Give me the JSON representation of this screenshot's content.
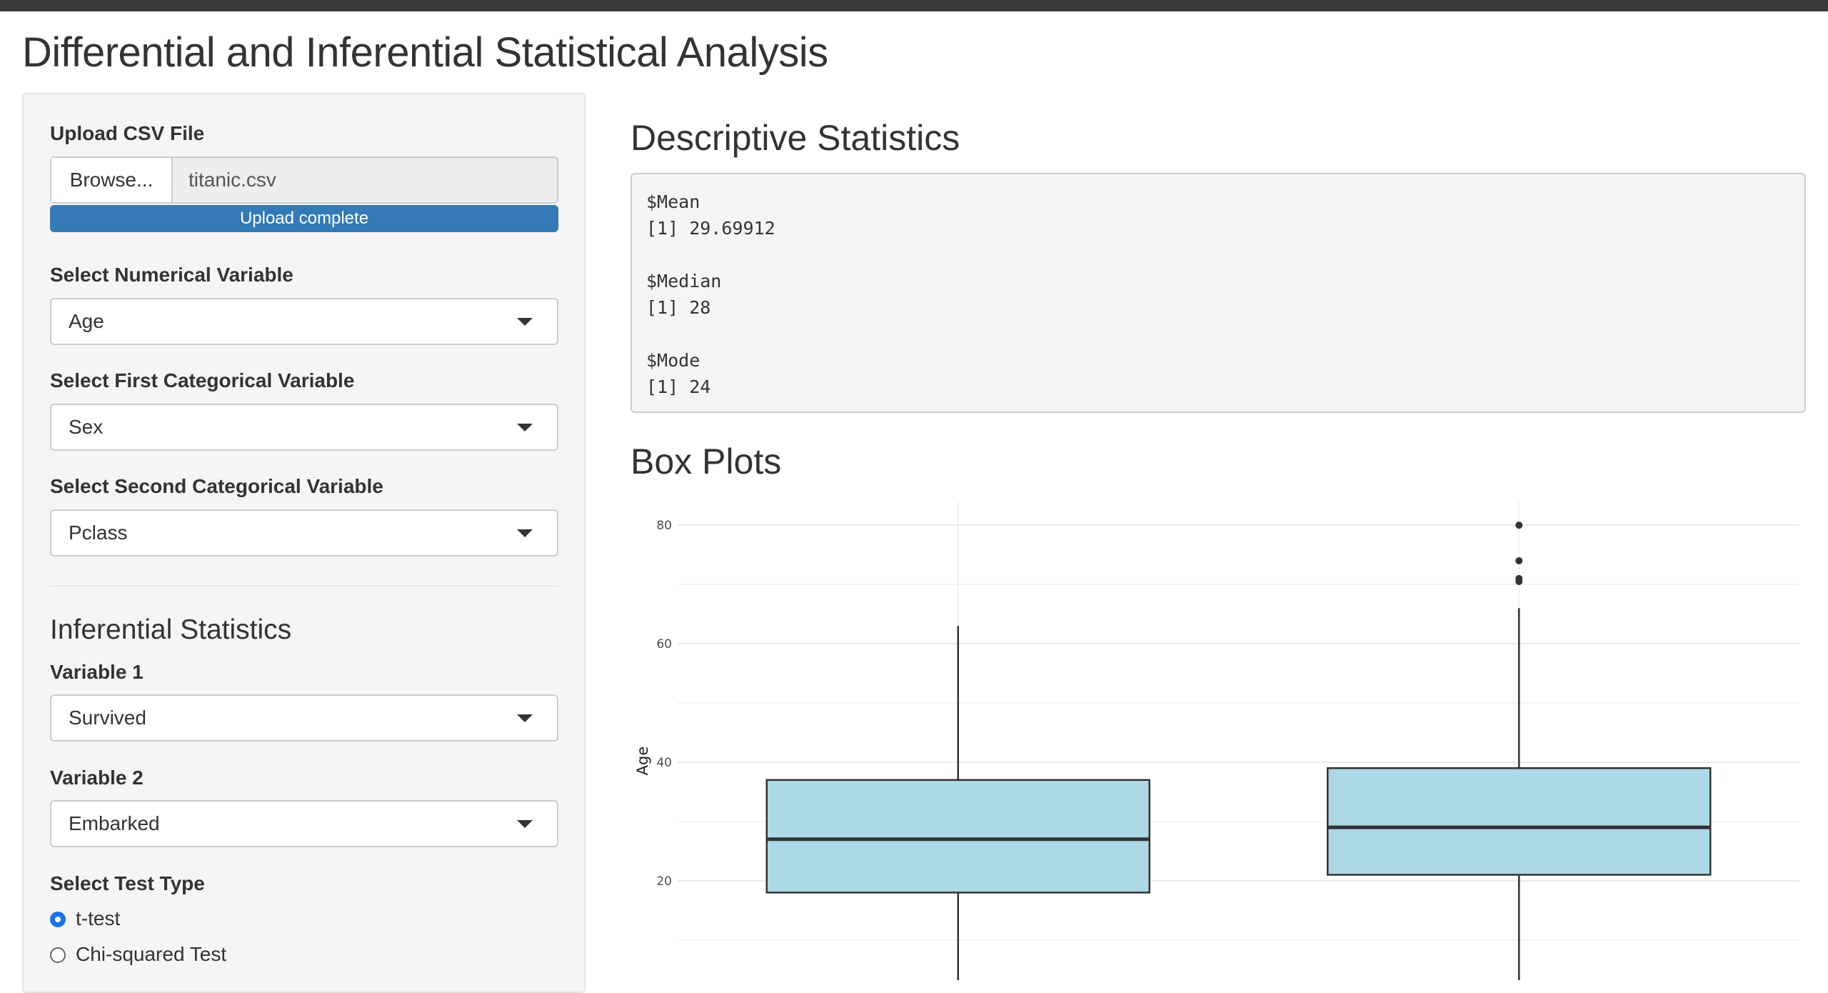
{
  "header": {
    "title": "Differential and Inferential Statistical Analysis"
  },
  "sidebar": {
    "upload": {
      "label": "Upload CSV File",
      "button": "Browse...",
      "file_name": "titanic.csv",
      "progress": "Upload complete"
    },
    "numerical": {
      "label": "Select Numerical Variable",
      "value": "Age"
    },
    "categorical_1": {
      "label": "Select First Categorical Variable",
      "value": "Sex"
    },
    "categorical_2": {
      "label": "Select Second Categorical Variable",
      "value": "Pclass"
    },
    "inferential": {
      "title": "Inferential Statistics",
      "variable_1": {
        "label": "Variable 1",
        "value": "Survived"
      },
      "variable_2": {
        "label": "Variable 2",
        "value": "Embarked"
      },
      "test_type": {
        "label": "Select Test Type",
        "options": [
          "t-test",
          "Chi-squared Test"
        ],
        "selected": 0
      }
    }
  },
  "main": {
    "descriptive": {
      "title": "Descriptive Statistics",
      "output": [
        {
          "name": "$Mean",
          "value": "[1] 29.69912"
        },
        {
          "name": "$Median",
          "value": "[1] 28"
        },
        {
          "name": "$Mode",
          "value": "[1] 24"
        }
      ]
    },
    "box_plots": {
      "title": "Box Plots"
    }
  },
  "box_plot": {
    "type": "box",
    "y_label": "Age",
    "ylim": [
      0,
      84
    ],
    "yticks": [
      20,
      40,
      60,
      80
    ],
    "y_minor_ticks": [
      10,
      30,
      50,
      70
    ],
    "grid": true,
    "box_color": "#add8e6",
    "boxes": [
      {
        "min": 0.75,
        "q1": 18,
        "median": 27,
        "q3": 37,
        "max": 63
      },
      {
        "min": 0.42,
        "q1": 21,
        "median": 29,
        "q3": 39,
        "max": 66,
        "outliers": [
          80,
          74,
          71,
          70.5
        ]
      }
    ]
  }
}
